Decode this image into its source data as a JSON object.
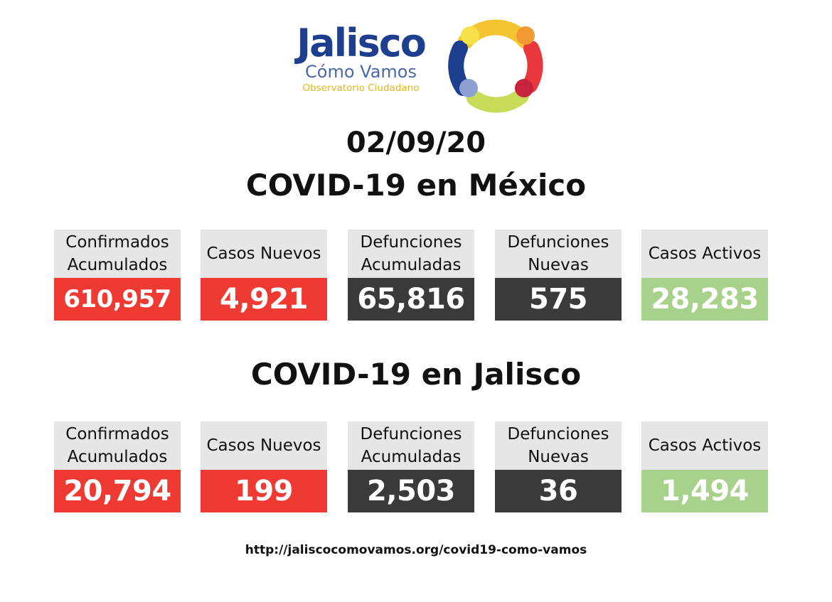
{
  "logo": {
    "name": "Jalisco",
    "subtitle": "Cómo Vamos",
    "tagline": "Observatorio Ciudadano"
  },
  "date": "02/09/20",
  "sections": [
    {
      "title": "COVID-19 en México",
      "cards": [
        {
          "label_line1": "Confirmados",
          "label_line2": "Acumulados",
          "value": "610,957"
        },
        {
          "label_line1": "Casos Nuevos",
          "label_line2": "",
          "value": "4,921"
        },
        {
          "label_line1": "Defunciones",
          "label_line2": "Acumuladas",
          "value": "65,816"
        },
        {
          "label_line1": "Defunciones",
          "label_line2": "Nuevas",
          "value": "575"
        },
        {
          "label_line1": "Casos Activos",
          "label_line2": "",
          "value": "28,283"
        }
      ]
    },
    {
      "title": "COVID-19 en Jalisco",
      "cards": [
        {
          "label_line1": "Confirmados",
          "label_line2": "Acumulados",
          "value": "20,794"
        },
        {
          "label_line1": "Casos Nuevos",
          "label_line2": "",
          "value": "199"
        },
        {
          "label_line1": "Defunciones",
          "label_line2": "Acumuladas",
          "value": "2,503"
        },
        {
          "label_line1": "Defunciones",
          "label_line2": "Nuevas",
          "value": "36"
        },
        {
          "label_line1": "Casos Activos",
          "label_line2": "",
          "value": "1,494"
        }
      ]
    }
  ],
  "url": "http://jaliscocomovamos.org/covid19-como-vamos",
  "colors": {
    "confirmed": "#ee3a32",
    "new_cases": "#ee3a32",
    "deaths": "#3a3a3a",
    "new_deaths": "#3a3a3a",
    "active": "#a8d18b",
    "label_bg": "#e6e6e6",
    "logo_blue": "#1d3f8e",
    "logo_yellow": "#e2b81c"
  }
}
